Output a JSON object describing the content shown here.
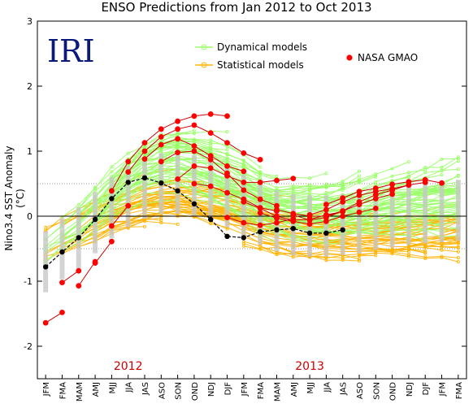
{
  "chart_data": {
    "type": "line",
    "title": "ENSO Predictions from Jan 2012 to Oct 2013",
    "ylabel": "Nino3.4 SST Anomaly (°C)",
    "logo": "IRI",
    "ylim": [
      -2.5,
      3
    ],
    "yticks": [
      "3",
      "2",
      "1",
      "0",
      "-1",
      "-2"
    ],
    "categories": [
      "JFM",
      "FMA",
      "MAM",
      "AMJ",
      "MJJ",
      "JJA",
      "JAS",
      "ASO",
      "SON",
      "OND",
      "NDJ",
      "DJF",
      "JFM",
      "FMA",
      "MAM",
      "AMJ",
      "MJJ",
      "JJA",
      "JAS",
      "ASO",
      "SON",
      "OND",
      "NDJ",
      "DJF",
      "JFM",
      "FMA"
    ],
    "year_labels": [
      "2012",
      "2013"
    ],
    "legend": [
      {
        "name": "Dynamical models",
        "color": "#99ff66"
      },
      {
        "name": "Statistical models",
        "color": "#ffb300"
      },
      {
        "name": "NASA GMAO",
        "color": "#ff0000"
      }
    ],
    "observed": {
      "name": "observed",
      "color": "#000000",
      "values": [
        -0.78,
        -0.55,
        -0.33,
        -0.05,
        0.27,
        0.52,
        0.59,
        0.51,
        0.39,
        0.19,
        -0.05,
        -0.31,
        -0.33,
        -0.24,
        -0.21,
        -0.19,
        -0.26,
        -0.26,
        -0.21
      ]
    },
    "nasa_gmao_forecasts": [
      {
        "start": 0,
        "values": [
          -1.64,
          -1.48
        ]
      },
      {
        "start": 1,
        "values": [
          -1.02,
          -0.84
        ]
      },
      {
        "start": 2,
        "values": [
          -1.07,
          -0.7
        ]
      },
      {
        "start": 3,
        "values": [
          -0.72,
          -0.39
        ]
      },
      {
        "start": 4,
        "values": [
          -0.15,
          0.16
        ]
      },
      {
        "start": 4,
        "values": [
          0.39,
          0.84,
          1.13,
          1.34,
          1.46,
          1.54,
          1.57,
          1.54
        ]
      },
      {
        "start": 5,
        "values": [
          0.68,
          1.0,
          1.22,
          1.34,
          1.4,
          1.28,
          1.13,
          0.97,
          0.87
        ]
      },
      {
        "start": 6,
        "values": [
          0.88,
          1.1,
          1.19,
          1.08,
          0.93,
          0.77,
          0.69
        ]
      },
      {
        "start": 7,
        "values": [
          0.84,
          0.98,
          1.0,
          0.87,
          0.66,
          0.4,
          0.26,
          0.16
        ]
      },
      {
        "start": 8,
        "values": [
          0.57,
          0.77,
          0.74,
          0.62,
          0.52,
          0.52,
          0.55,
          0.58
        ]
      },
      {
        "start": 9,
        "values": [
          0.5,
          0.46,
          0.36,
          0.26,
          0.13,
          0.08
        ]
      },
      {
        "start": 11,
        "values": [
          -0.02,
          -0.1,
          -0.14,
          -0.1,
          -0.04
        ]
      },
      {
        "start": 12,
        "values": [
          0.22,
          0.12,
          0.0,
          -0.06,
          -0.05,
          0.02,
          0.07
        ]
      },
      {
        "start": 13,
        "values": [
          0.05,
          -0.03,
          -0.08,
          -0.12,
          -0.08,
          0.0,
          0.06,
          0.12
        ]
      },
      {
        "start": 14,
        "values": [
          0.1,
          0.04,
          0.0,
          0.0,
          0.08,
          0.18,
          0.27,
          0.34
        ]
      },
      {
        "start": 15,
        "values": [
          0.02,
          -0.06,
          -0.02,
          0.08,
          0.22,
          0.33,
          0.4,
          0.48
        ]
      },
      {
        "start": 16,
        "values": [
          0.02,
          0.1,
          0.22,
          0.32,
          0.38,
          0.42,
          0.48,
          0.52
        ]
      },
      {
        "start": 17,
        "values": [
          0.18,
          0.28,
          0.38,
          0.43,
          0.49,
          0.53,
          0.56,
          0.51
        ]
      }
    ],
    "grid": "dotted at +0.5 and -0.5",
    "legend_placement": "top"
  }
}
